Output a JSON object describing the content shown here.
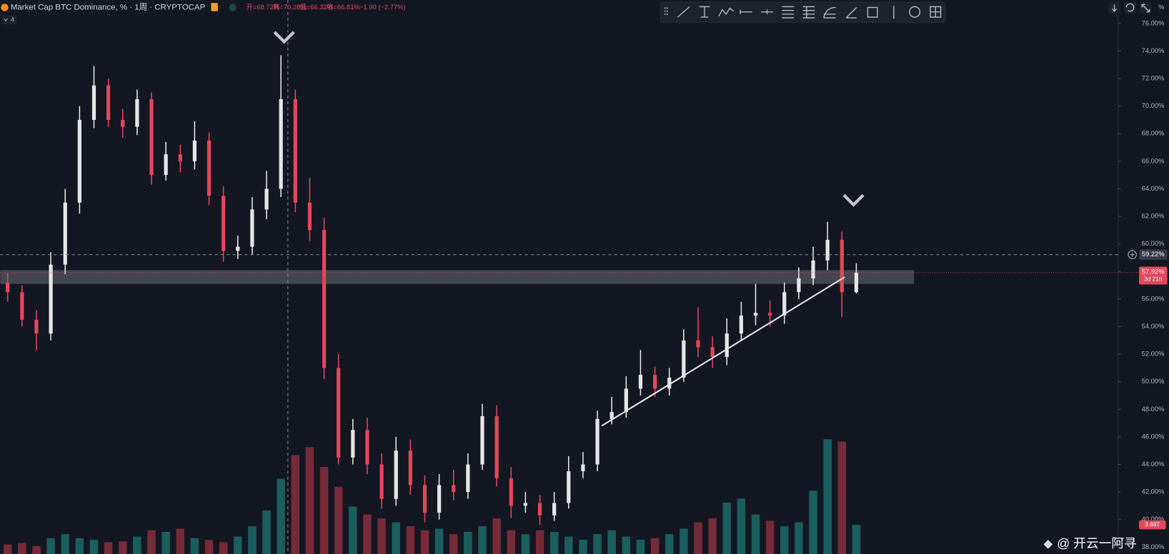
{
  "header": {
    "title": "Market Cap BTC Dominance, % · 1周 · CRYPTOCAP",
    "open": "开=68.72%",
    "high": "高=70.28%",
    "low": "低=66.32%",
    "close": "收=66.81%",
    "change": "−1.90 (−2.77%)",
    "indicator": "4",
    "percent_button": "%",
    "watermark": "@ 开云一阿寻"
  },
  "chart_data": {
    "type": "candlestick",
    "open": [
      57.2,
      56.5,
      54.5,
      53.5,
      58.5,
      63,
      69,
      71.5,
      69,
      68.5,
      70.5,
      65,
      66.5,
      66,
      67.5,
      63.5,
      59.5,
      59.8,
      62.5,
      64,
      70.5,
      63,
      61,
      51,
      44.5,
      46.5,
      44,
      41.5,
      45,
      42.5,
      40.5,
      42.5,
      42,
      44,
      47.5,
      43,
      41,
      41.2,
      40.3,
      41.2,
      43.5,
      44,
      47.3,
      47.8,
      49.5,
      50.5,
      49.5,
      50.3,
      53,
      52.5,
      51.8,
      53.5,
      54.8,
      55,
      54.8,
      56.5,
      57.5,
      58.8,
      60.3,
      56.5
    ],
    "high": [
      57.9,
      57.0,
      55.2,
      59.4,
      64.0,
      70.0,
      72.9,
      72.0,
      69.8,
      71.2,
      71.0,
      67.4,
      67.2,
      68.9,
      68.1,
      64.2,
      60.6,
      63.4,
      65.3,
      73.7,
      71.2,
      64.8,
      61.9,
      52.0,
      47.3,
      47.4,
      44.8,
      46.0,
      45.8,
      43.2,
      43.3,
      43.6,
      44.8,
      48.4,
      48.3,
      43.8,
      42.0,
      41.8,
      42.0,
      44.6,
      44.9,
      47.9,
      48.9,
      50.4,
      52.3,
      51.1,
      51.0,
      53.8,
      55.4,
      53.3,
      54.6,
      55.8,
      57.1,
      55.9,
      57.2,
      58.3,
      59.8,
      61.6,
      60.9,
      58.6
    ],
    "low": [
      55.8,
      54.0,
      52.3,
      53.0,
      57.8,
      62.2,
      68.4,
      68.5,
      67.7,
      67.9,
      64.3,
      64.6,
      65.2,
      65.4,
      62.8,
      58.7,
      58.9,
      59.2,
      61.8,
      63.4,
      62.3,
      60.2,
      50.2,
      44.0,
      44.0,
      43.3,
      40.8,
      41.0,
      41.8,
      39.8,
      40.0,
      41.4,
      41.5,
      43.6,
      42.4,
      40.1,
      40.5,
      39.6,
      39.9,
      40.8,
      43.0,
      43.5,
      46.9,
      47.4,
      49.0,
      48.9,
      49.0,
      50.0,
      51.8,
      51.0,
      51.2,
      53.0,
      54.1,
      54.0,
      54.2,
      56.0,
      57.0,
      58.1,
      54.7,
      56.4
    ],
    "close": [
      56.5,
      54.5,
      53.5,
      58.5,
      63,
      69,
      71.5,
      69,
      68.5,
      70.5,
      65,
      66.5,
      66,
      67.5,
      63.5,
      59.5,
      59.8,
      62.5,
      64,
      70.5,
      63,
      61,
      51,
      44.5,
      46.5,
      44,
      41.5,
      45,
      42.5,
      40.5,
      42.5,
      42,
      44,
      47.5,
      43,
      41,
      41.2,
      40.3,
      41.2,
      43.5,
      44,
      47.3,
      47.8,
      49.5,
      50.5,
      49.5,
      50.3,
      53,
      52.5,
      51.8,
      53.5,
      54.8,
      55,
      54.8,
      56.5,
      57.5,
      58.8,
      60.3,
      56.5,
      57.92
    ],
    "up_color": "#e6e6e6",
    "down_color": "#e5465b",
    "volume": [
      1.2,
      1.4,
      1.0,
      2.0,
      2.5,
      2.0,
      1.8,
      1.5,
      1.6,
      2.2,
      3.0,
      2.8,
      3.2,
      2.0,
      1.8,
      1.5,
      2.2,
      3.5,
      5.5,
      9.5,
      12.5,
      13.5,
      11.0,
      8.5,
      6.0,
      5.0,
      4.5,
      4.0,
      3.5,
      3.0,
      3.2,
      2.5,
      2.8,
      3.5,
      4.5,
      3.0,
      2.5,
      3.0,
      2.8,
      2.2,
      1.8,
      2.5,
      3.0,
      2.2,
      1.8,
      2.0,
      2.5,
      3.2,
      4.0,
      4.5,
      6.5,
      7.0,
      5.0,
      4.2,
      3.5,
      4.0,
      8.0,
      14.5,
      14.2,
      3.68
    ],
    "volume_ylim": [
      0,
      70
    ],
    "volume_last_label": "3.68T",
    "volume_up_color": "#1d6b68",
    "volume_down_color": "#8a2e3b",
    "ylim": [
      37.5,
      77.7
    ],
    "yticks": [
      {
        "value": 38,
        "label": "38.00%"
      },
      {
        "value": 40,
        "label": "40.00%"
      },
      {
        "value": 42,
        "label": "42.00%"
      },
      {
        "value": 44,
        "label": "44.00%"
      },
      {
        "value": 46,
        "label": "46.00%"
      },
      {
        "value": 48,
        "label": "48.00%"
      },
      {
        "value": 50,
        "label": "50.00%"
      },
      {
        "value": 52,
        "label": "52.00%"
      },
      {
        "value": 54,
        "label": "54.00%"
      },
      {
        "value": 56,
        "label": "56.00%"
      },
      {
        "value": 58,
        "label": "58.00%"
      },
      {
        "value": 60,
        "label": "60.00%"
      },
      {
        "value": 62,
        "label": "62.00%"
      },
      {
        "value": 64,
        "label": "64.00%"
      },
      {
        "value": 66,
        "label": "66.00%"
      },
      {
        "value": 68,
        "label": "68.00%"
      },
      {
        "value": 70,
        "label": "70.00%"
      },
      {
        "value": 72,
        "label": "72.00%"
      },
      {
        "value": 74,
        "label": "74.00%"
      },
      {
        "value": 76,
        "label": "76.00%"
      }
    ],
    "crosshair": {
      "value": 59.22,
      "label": "59.22%"
    },
    "last_price": {
      "value": 57.92,
      "label": "57.92%"
    },
    "countdown": "3d 21h",
    "zone": [
      57.1,
      58.1
    ],
    "trendline": {
      "x": [
        41.3,
        58.2
      ],
      "y": [
        46.8,
        57.6
      ]
    }
  }
}
